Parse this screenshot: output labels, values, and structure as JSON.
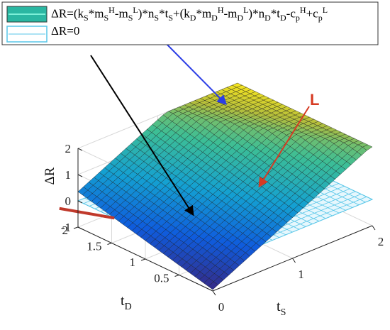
{
  "chart_data": {
    "type": "surface3d",
    "xlabel": "t",
    "xlabel_sub": "S",
    "ylabel": "t",
    "ylabel_sub": "D",
    "zlabel": "ΔR",
    "xlim": [
      0,
      2
    ],
    "ylim": [
      0,
      2
    ],
    "zlim": [
      -1,
      2
    ],
    "x_ticks": [
      "0",
      "1",
      "2"
    ],
    "y_ticks": [
      "0.5",
      "1",
      "1.5",
      "2"
    ],
    "z_ticks": [
      "-1",
      "0",
      "1",
      "2"
    ],
    "surfaces": [
      {
        "name": "ΔR=(kS*mSH-mSL)*nS*tS+(kD*mDH-mDL)*nD*tD-cpH+cpL",
        "legend_html": "ΔR=(k<sub>S</sub>*m<sub>S</sub><sup>H</sup>-m<sub>S</sub><sup>L</sup>)*n<sub>S</sub>*t<sub>S</sub>+(k<sub>D</sub>*m<sub>D</sub><sup>H</sup>-m<sub>D</sub><sup>L</sup>)*n<sub>D</sub>*t<sub>D</sub>-c<sub>p</sub><sup>H</sup>+c<sub>p</sub><sup>L</sup>",
        "corner_values": {
          "x0y0": -0.95,
          "x2y0": 2.05,
          "x0y2": 0.35,
          "x2y2": 3.35
        },
        "colormap": "parula"
      },
      {
        "name": "ΔR=0",
        "legend_html": "ΔR=0",
        "constant": 0,
        "color": "#57c6e8"
      }
    ],
    "intersection_label": "L",
    "intersection_color": "#c0392b",
    "arrow_colors": {
      "top": "#2c3ee6",
      "plane": "#000000",
      "L": "#d63a22"
    },
    "grid": true
  }
}
